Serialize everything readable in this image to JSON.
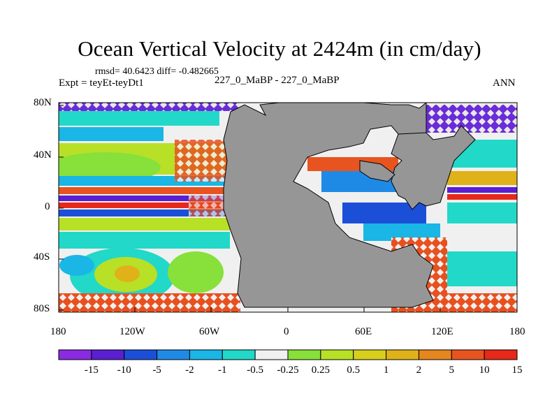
{
  "title": "Ocean Vertical Velocity at 2424m (in cm/day)",
  "stats": "rmsd= 40.6423 diff= -0.482665",
  "experiment": "Expt = teyEt-teyDt1",
  "case": "227_0_MaBP - 227_0_MaBP",
  "season": "ANN",
  "lat_labels": [
    "80N",
    "40N",
    "0",
    "40S",
    "80S"
  ],
  "lon_labels": [
    "180",
    "120W",
    "60W",
    "0",
    "60E",
    "120E",
    "180"
  ],
  "colorbar": {
    "labels": [
      "-15",
      "-10",
      "-5",
      "-2",
      "-1",
      "-0.5",
      "-0.25",
      "0.25",
      "0.5",
      "1",
      "2",
      "5",
      "10",
      "15"
    ],
    "colors": [
      "#8a2be2",
      "#5a1fd0",
      "#1b4fd8",
      "#1f8ae6",
      "#19b6e6",
      "#22d8c8",
      "#f0f0f0",
      "#88e03a",
      "#b8e026",
      "#d8cf1c",
      "#e0b21a",
      "#e6861e",
      "#e85420",
      "#e82818"
    ]
  },
  "land_color": "#969696"
}
